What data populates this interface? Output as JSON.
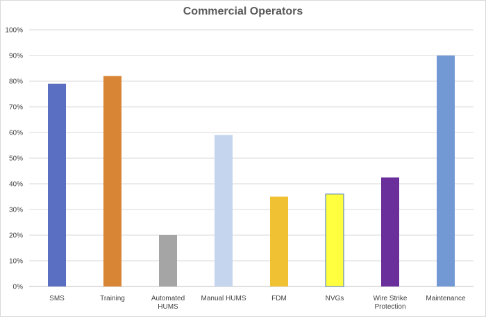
{
  "chart_data": {
    "type": "bar",
    "title": "Commercial Operators",
    "categories": [
      "SMS",
      "Training",
      "Automated HUMS",
      "Manual HUMS",
      "FDM",
      "NVGs",
      "Wire Strike Protection",
      "Maintenance"
    ],
    "category_lines": [
      [
        "SMS"
      ],
      [
        "Training"
      ],
      [
        "Automated",
        "HUMS"
      ],
      [
        "Manual HUMS"
      ],
      [
        "FDM"
      ],
      [
        "NVGs"
      ],
      [
        "Wire Strike",
        "Protection"
      ],
      [
        "Maintenance"
      ]
    ],
    "values": [
      79,
      82,
      20,
      59,
      35,
      36,
      42.5,
      90
    ],
    "colors": [
      "#5B6FC2",
      "#D98536",
      "#A5A5A5",
      "#C5D5EE",
      "#F0C233",
      "#FFFF3F",
      "#6A2F9B",
      "#7299D4"
    ],
    "ylim": [
      0,
      100
    ],
    "yticks": [
      "0%",
      "10%",
      "20%",
      "30%",
      "40%",
      "50%",
      "60%",
      "70%",
      "80%",
      "90%",
      "100%"
    ],
    "xlabel": "",
    "ylabel": "",
    "grid": true,
    "legend": "none"
  }
}
